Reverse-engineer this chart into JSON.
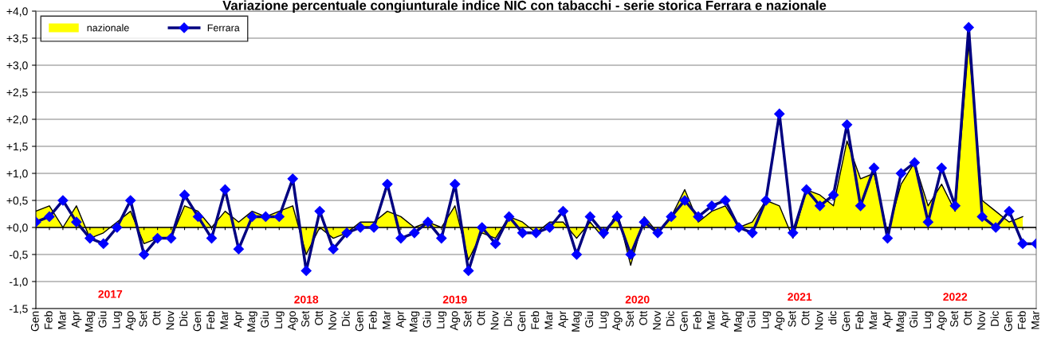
{
  "chart_data": {
    "type": "area",
    "title": "Variazione percentuale congiunturale indice NIC con tabacchi - serie storica Ferrara e nazionale",
    "categories": [
      "Gen",
      "Feb",
      "Mar",
      "Apr",
      "Mag",
      "Giu",
      "Lug",
      "Ago",
      "Set",
      "Ott",
      "Nov",
      "Dic",
      "Gen",
      "Feb",
      "Mar",
      "Apr",
      "Mag",
      "Giu",
      "Lug",
      "Ago",
      "Set",
      "Ott",
      "Nov",
      "Dic",
      "Gen",
      "Feb",
      "Mar",
      "Apr",
      "Mag",
      "Giu",
      "Lug",
      "Ago",
      "Set",
      "Ott",
      "Nov",
      "Dic",
      "Gen",
      "Feb",
      "Mar",
      "Apr",
      "Mag",
      "Giu",
      "Lug",
      "Ago",
      "Set",
      "Ott",
      "Nov",
      "Dic",
      "Gen",
      "Feb",
      "Mar",
      "Apr",
      "Mag",
      "Giu",
      "Lug",
      "Ago",
      "Set",
      "Ott",
      "Nov",
      "dic",
      "Gen",
      "Feb",
      "Mar",
      "Apr",
      "Mag",
      "Giu",
      "Lug",
      "Ago",
      "Set",
      "Ott",
      "Nov",
      "Dic",
      "Gen",
      "Feb",
      "Mar"
    ],
    "series": [
      {
        "name": "nazionale",
        "type": "area",
        "marker": "none",
        "color": "#ffff00",
        "values": [
          0.3,
          0.4,
          0,
          0.4,
          -0.2,
          -0.1,
          0.1,
          0.3,
          -0.3,
          -0.2,
          -0.2,
          0.4,
          0.3,
          0,
          0.3,
          0.1,
          0.3,
          0.2,
          0.3,
          0.4,
          -0.5,
          0,
          -0.2,
          -0.1,
          0.1,
          0.1,
          0.3,
          0.2,
          0,
          0.1,
          0,
          0.4,
          -0.6,
          -0.1,
          -0.2,
          0.2,
          0.1,
          -0.1,
          0.1,
          0.1,
          -0.2,
          0.1,
          -0.2,
          0.3,
          -0.7,
          0.2,
          -0.1,
          0.2,
          0.7,
          0.1,
          0.3,
          0.4,
          0,
          0.1,
          0.5,
          0.4,
          -0.2,
          0.7,
          0.6,
          0.4,
          1.6,
          0.9,
          1.0,
          -0.1,
          0.8,
          1.2,
          0.4,
          0.8,
          0.3,
          3.4,
          0.5,
          0.3,
          0.1,
          0.2,
          null
        ]
      },
      {
        "name": "Ferrara",
        "type": "line",
        "color": "#000080",
        "marker": "diamond",
        "values": [
          0.1,
          0.2,
          0.5,
          0.1,
          -0.2,
          -0.3,
          0,
          0.5,
          -0.5,
          -0.2,
          -0.2,
          0.6,
          0.2,
          -0.2,
          0.7,
          -0.4,
          0.2,
          0.2,
          0.2,
          0.9,
          -0.8,
          0.3,
          -0.4,
          -0.1,
          0,
          0,
          0.8,
          -0.2,
          -0.1,
          0.1,
          -0.2,
          0.8,
          -0.8,
          0,
          -0.3,
          0.2,
          -0.1,
          -0.1,
          0,
          0.3,
          -0.5,
          0.2,
          -0.1,
          0.2,
          -0.5,
          0.1,
          -0.1,
          0.2,
          0.5,
          0.2,
          0.4,
          0.5,
          0,
          -0.1,
          0.5,
          2.1,
          -0.1,
          0.7,
          0.4,
          0.6,
          1.9,
          0.4,
          1.1,
          -0.2,
          1.0,
          1.2,
          0.1,
          1.1,
          0.4,
          3.7,
          0.2,
          0,
          0.3,
          -0.3,
          -0.3
        ]
      }
    ],
    "ylim": [
      -1.5,
      4.0
    ],
    "yticks": [
      {
        "value": -1.5,
        "label": "-1,5"
      },
      {
        "value": -1.0,
        "label": "-1,0"
      },
      {
        "value": -0.5,
        "label": "-0,5"
      },
      {
        "value": 0,
        "label": "+0,0"
      },
      {
        "value": 0.5,
        "label": "+0,5"
      },
      {
        "value": 1.0,
        "label": "+1,0"
      },
      {
        "value": 1.5,
        "label": "+1,5"
      },
      {
        "value": 2.0,
        "label": "+2,0"
      },
      {
        "value": 2.5,
        "label": "+2,5"
      },
      {
        "value": 3.0,
        "label": "+3,0"
      },
      {
        "value": 3.5,
        "label": "+3,5"
      },
      {
        "value": 4.0,
        "label": "+4,0"
      }
    ],
    "grid": "y",
    "legend": "top left",
    "annotations": [
      "2017",
      "2018",
      "2019",
      "2020",
      "2021",
      "2022"
    ]
  }
}
